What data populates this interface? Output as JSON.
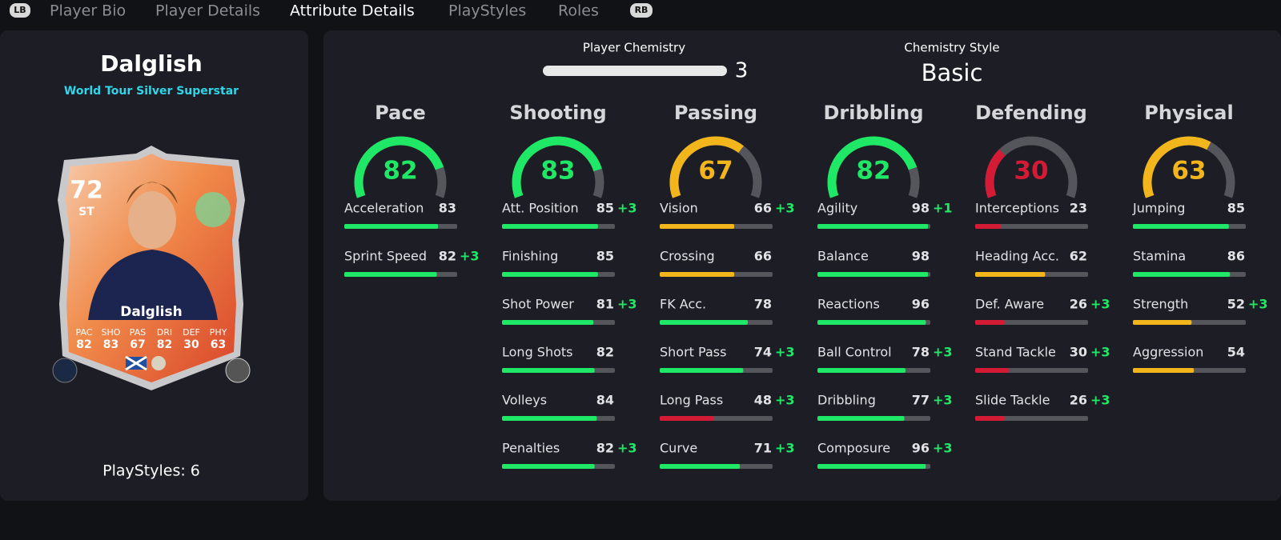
{
  "tabs": {
    "left_button": "LB",
    "items": [
      "Player Bio",
      "Player Details",
      "Attribute Details",
      "PlayStyles",
      "Roles"
    ],
    "active": 2,
    "right_button": "RB"
  },
  "player": {
    "name": "Dalglish",
    "version": "World Tour Silver Superstar",
    "card": {
      "rating": 72,
      "position": "ST",
      "name": "Dalglish",
      "stats": [
        {
          "label": "PAC",
          "value": 82
        },
        {
          "label": "SHO",
          "value": 83
        },
        {
          "label": "PAS",
          "value": 67
        },
        {
          "label": "DRI",
          "value": 82
        },
        {
          "label": "DEF",
          "value": 30
        },
        {
          "label": "PHY",
          "value": 63
        }
      ]
    },
    "playstyles": "PlayStyles: 6"
  },
  "chemistry": {
    "label": "Player Chemistry",
    "value": 3,
    "style_label": "Chemistry Style",
    "style": "Basic"
  },
  "attribute_range": [
    0,
    100
  ],
  "categories": [
    {
      "name": "Pace",
      "value": 82,
      "color": "#1ee865",
      "attributes": [
        {
          "name": "Acceleration",
          "value": 83,
          "color": "#1ee865"
        },
        {
          "name": "Sprint Speed",
          "value": 82,
          "boost": "+3",
          "color": "#1ee865"
        }
      ]
    },
    {
      "name": "Shooting",
      "value": 83,
      "color": "#1ee865",
      "attributes": [
        {
          "name": "Att. Position",
          "value": 85,
          "boost": "+3",
          "color": "#1ee865"
        },
        {
          "name": "Finishing",
          "value": 85,
          "color": "#1ee865"
        },
        {
          "name": "Shot Power",
          "value": 81,
          "boost": "+3",
          "color": "#1ee865"
        },
        {
          "name": "Long Shots",
          "value": 82,
          "color": "#1ee865"
        },
        {
          "name": "Volleys",
          "value": 84,
          "color": "#1ee865"
        },
        {
          "name": "Penalties",
          "value": 82,
          "boost": "+3",
          "color": "#1ee865"
        }
      ]
    },
    {
      "name": "Passing",
      "value": 67,
      "color": "#f2b51c",
      "attributes": [
        {
          "name": "Vision",
          "value": 66,
          "boost": "+3",
          "color": "#f2b51c"
        },
        {
          "name": "Crossing",
          "value": 66,
          "color": "#f2b51c"
        },
        {
          "name": "FK Acc.",
          "value": 78,
          "color": "#1ee865"
        },
        {
          "name": "Short Pass",
          "value": 74,
          "boost": "+3",
          "color": "#1ee865"
        },
        {
          "name": "Long Pass",
          "value": 48,
          "boost": "+3",
          "color": "#d41b36"
        },
        {
          "name": "Curve",
          "value": 71,
          "boost": "+3",
          "color": "#1ee865"
        }
      ]
    },
    {
      "name": "Dribbling",
      "value": 82,
      "color": "#1ee865",
      "attributes": [
        {
          "name": "Agility",
          "value": 98,
          "boost": "+1",
          "color": "#1ee865"
        },
        {
          "name": "Balance",
          "value": 98,
          "color": "#1ee865"
        },
        {
          "name": "Reactions",
          "value": 96,
          "color": "#1ee865"
        },
        {
          "name": "Ball Control",
          "value": 78,
          "boost": "+3",
          "color": "#1ee865"
        },
        {
          "name": "Dribbling",
          "value": 77,
          "boost": "+3",
          "color": "#1ee865"
        },
        {
          "name": "Composure",
          "value": 96,
          "boost": "+3",
          "color": "#1ee865"
        }
      ]
    },
    {
      "name": "Defending",
      "value": 30,
      "color": "#d41b36",
      "attributes": [
        {
          "name": "Interceptions",
          "value": 23,
          "color": "#d41b36"
        },
        {
          "name": "Heading Acc.",
          "value": 62,
          "color": "#f2b51c"
        },
        {
          "name": "Def. Aware",
          "value": 26,
          "boost": "+3",
          "color": "#d41b36"
        },
        {
          "name": "Stand Tackle",
          "value": 30,
          "boost": "+3",
          "color": "#d41b36"
        },
        {
          "name": "Slide Tackle",
          "value": 26,
          "boost": "+3",
          "color": "#d41b36"
        }
      ]
    },
    {
      "name": "Physical",
      "value": 63,
      "color": "#f2b51c",
      "attributes": [
        {
          "name": "Jumping",
          "value": 85,
          "color": "#1ee865"
        },
        {
          "name": "Stamina",
          "value": 86,
          "color": "#1ee865"
        },
        {
          "name": "Strength",
          "value": 52,
          "boost": "+3",
          "color": "#f2b51c"
        },
        {
          "name": "Aggression",
          "value": 54,
          "color": "#f2b51c"
        }
      ]
    }
  ]
}
